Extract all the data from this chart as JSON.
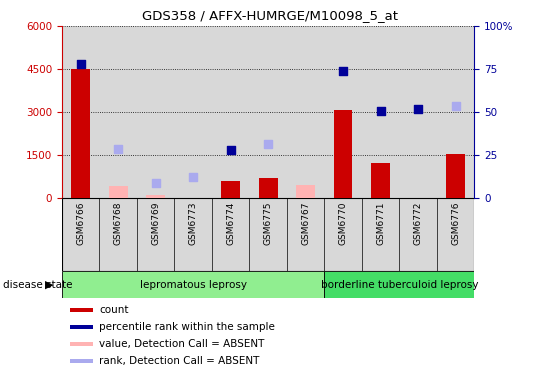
{
  "title": "GDS358 / AFFX-HUMRGE/M10098_5_at",
  "samples": [
    "GSM6766",
    "GSM6768",
    "GSM6769",
    "GSM6773",
    "GSM6774",
    "GSM6775",
    "GSM6767",
    "GSM6770",
    "GSM6771",
    "GSM6772",
    "GSM6776"
  ],
  "count_present": [
    4480,
    0,
    0,
    0,
    580,
    680,
    0,
    3050,
    1220,
    0,
    1530
  ],
  "count_absent": [
    0,
    410,
    75,
    0,
    0,
    0,
    450,
    0,
    0,
    0,
    0
  ],
  "rank_present_pct": [
    77.5,
    0,
    0,
    0,
    27.5,
    0,
    0,
    73.5,
    50.5,
    51.5,
    0
  ],
  "rank_absent_pct": [
    0,
    28.0,
    8.5,
    12.0,
    0,
    31.0,
    0,
    0,
    0,
    0,
    53.0
  ],
  "n_lepromatous": 7,
  "left_ylim": [
    0,
    6000
  ],
  "right_ylim": [
    0,
    100
  ],
  "left_yticks": [
    0,
    1500,
    3000,
    4500,
    6000
  ],
  "right_yticks": [
    0,
    25,
    50,
    75,
    100
  ],
  "col_bg": "#d8d8d8",
  "color_count_present": "#cc0000",
  "color_count_absent": "#ffb3b3",
  "color_rank_present": "#000099",
  "color_rank_absent": "#aaaaee",
  "leprosy_group_color": "#90ee90",
  "tuberculoid_group_color": "#44dd66",
  "leprosy_label": "lepromatous leprosy",
  "tuberculoid_label": "borderline tuberculoid leprosy",
  "disease_state_label": "disease state",
  "dotgrid_color": "#000000",
  "plot_bg": "#ffffff"
}
